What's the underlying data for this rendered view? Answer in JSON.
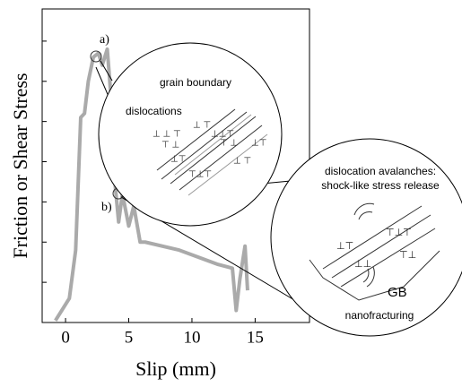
{
  "chart_data": {
    "type": "line",
    "x_label": "Slip (mm)",
    "y_label": "Friction or Shear Stress",
    "x": [
      -0.8,
      0.3,
      0.8,
      1.2,
      1.5,
      1.8,
      2.2,
      2.6,
      2.9,
      3.3,
      3.6,
      3.9,
      4.2,
      4.5,
      5.0,
      5.4,
      5.9,
      6.3,
      9,
      12,
      13.2,
      13.5,
      13.8,
      14.2,
      14.4
    ],
    "values": [
      0.05,
      0.6,
      1.8,
      5.1,
      5.2,
      6.0,
      6.6,
      6.7,
      6.4,
      6.8,
      5.6,
      3.5,
      2.5,
      3.2,
      2.4,
      2.9,
      2.0,
      2.0,
      1.8,
      1.45,
      1.35,
      0.3,
      1.1,
      1.9,
      0.8
    ],
    "color": "#aaaaaa",
    "xlim": [
      -1.85,
      19.3
    ],
    "xticks": [
      0,
      5,
      10,
      15
    ],
    "ylim": [
      0,
      7.8
    ],
    "yticks": [
      1,
      2,
      3,
      4,
      5,
      6,
      7
    ],
    "annotations": [
      "a)",
      "b)",
      "grain boundary",
      "dislocations",
      "dislocation avalanches:",
      "shock-like stress release",
      "GB",
      "nanofracturing"
    ]
  }
}
